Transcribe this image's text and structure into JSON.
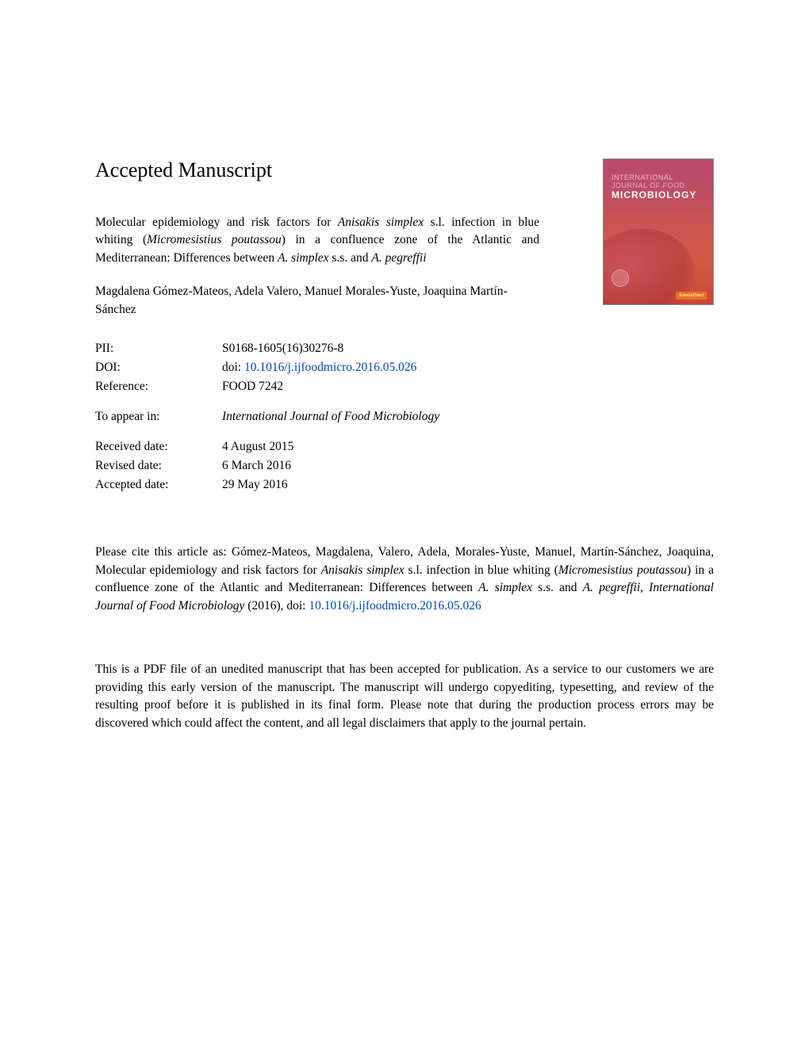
{
  "heading": "Accepted Manuscript",
  "cover": {
    "line1": "INTERNATIONAL",
    "line2": "JOURNAL OF FOOD",
    "line3": "MICROBIOLOGY",
    "sd": "ScienceDirect"
  },
  "title": {
    "part1": "Molecular epidemiology and risk factors for ",
    "italic1": "Anisakis simplex",
    "part2": " s.l. infection in blue whiting (",
    "italic2": "Micromesistius poutassou",
    "part3": ") in a confluence zone of the Atlantic and Mediterranean: Differences between ",
    "italic3": "A. simplex",
    "part4": " s.s. and ",
    "italic4": "A. pegreffii"
  },
  "authors": "Magdalena Gómez-Mateos, Adela Valero, Manuel Morales-Yuste, Joaquina Martín-Sánchez",
  "meta": {
    "pii_label": "PII:",
    "pii_value": "S0168-1605(16)30276-8",
    "doi_label": "DOI:",
    "doi_prefix": "doi: ",
    "doi_value": "10.1016/j.ijfoodmicro.2016.05.026",
    "ref_label": "Reference:",
    "ref_value": "FOOD 7242",
    "appear_label": "To appear in:",
    "appear_value": "International Journal of Food Microbiology",
    "received_label": "Received date:",
    "received_value": "4 August 2015",
    "revised_label": "Revised date:",
    "revised_value": "6 March 2016",
    "accepted_label": "Accepted date:",
    "accepted_value": "29 May 2016"
  },
  "citation": {
    "lead": "Please cite this article as:  Gómez-Mateos, Magdalena, Valero, Adela, Morales-Yuste, Manuel, Martín-Sánchez, Joaquina, Molecular epidemiology and risk factors for ",
    "it1": "Anisakis simplex",
    "p2": " s.l. infection in blue whiting (",
    "it2": "Micromesistius poutassou",
    "p3": ") in a confluence zone of the Atlantic and Mediterranean:  Differences between ",
    "it3": "A. simplex",
    "p4": " s.s.  and ",
    "it4": "A. pegreffii",
    "p5": ", ",
    "it5": "International Journal of Food Microbiology",
    "p6": " (2016),  doi: ",
    "doi": "10.1016/j.ijfoodmicro.2016.05.026"
  },
  "disclaimer": "This is a PDF file of an unedited manuscript that has been accepted for publication. As a service to our customers we are providing this early version of the manuscript. The manuscript will undergo copyediting, typesetting, and review of the resulting proof before it is published in its final form. Please note that during the production process errors may be discovered which could affect the content, and all legal disclaimers that apply to the journal pertain."
}
